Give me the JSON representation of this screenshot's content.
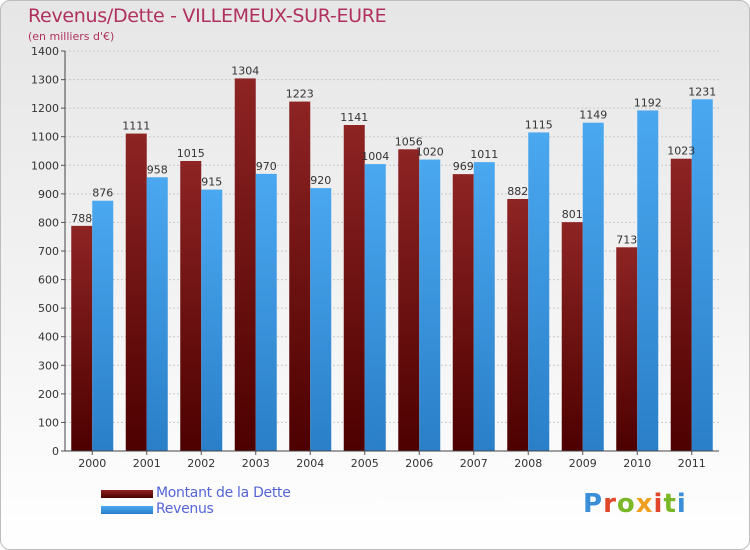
{
  "title": "Revenus/Dette - VILLEMEUX-SUR-EURE",
  "subtitle": "(en milliers d'€)",
  "brand": "Proxiti",
  "legend": {
    "debt_label": "Montant de la Dette",
    "revenue_label": "Revenus"
  },
  "chart_data": {
    "type": "bar",
    "categories": [
      "2000",
      "2001",
      "2002",
      "2003",
      "2004",
      "2005",
      "2006",
      "2007",
      "2008",
      "2009",
      "2010",
      "2011"
    ],
    "series": [
      {
        "name": "Montant de la Dette",
        "color": "#7a1818",
        "values": [
          788,
          1111,
          1015,
          1304,
          1223,
          1141,
          1056,
          969,
          882,
          801,
          713,
          1023
        ]
      },
      {
        "name": "Revenus",
        "color": "#3d9be6",
        "values": [
          876,
          958,
          915,
          970,
          920,
          1004,
          1020,
          1011,
          1115,
          1149,
          1192,
          1231
        ]
      }
    ],
    "y_ticks": [
      0,
      100,
      200,
      300,
      400,
      500,
      600,
      700,
      800,
      900,
      1000,
      1100,
      1200,
      1300,
      1400
    ],
    "ylim": [
      0,
      1400
    ],
    "grid": true
  }
}
